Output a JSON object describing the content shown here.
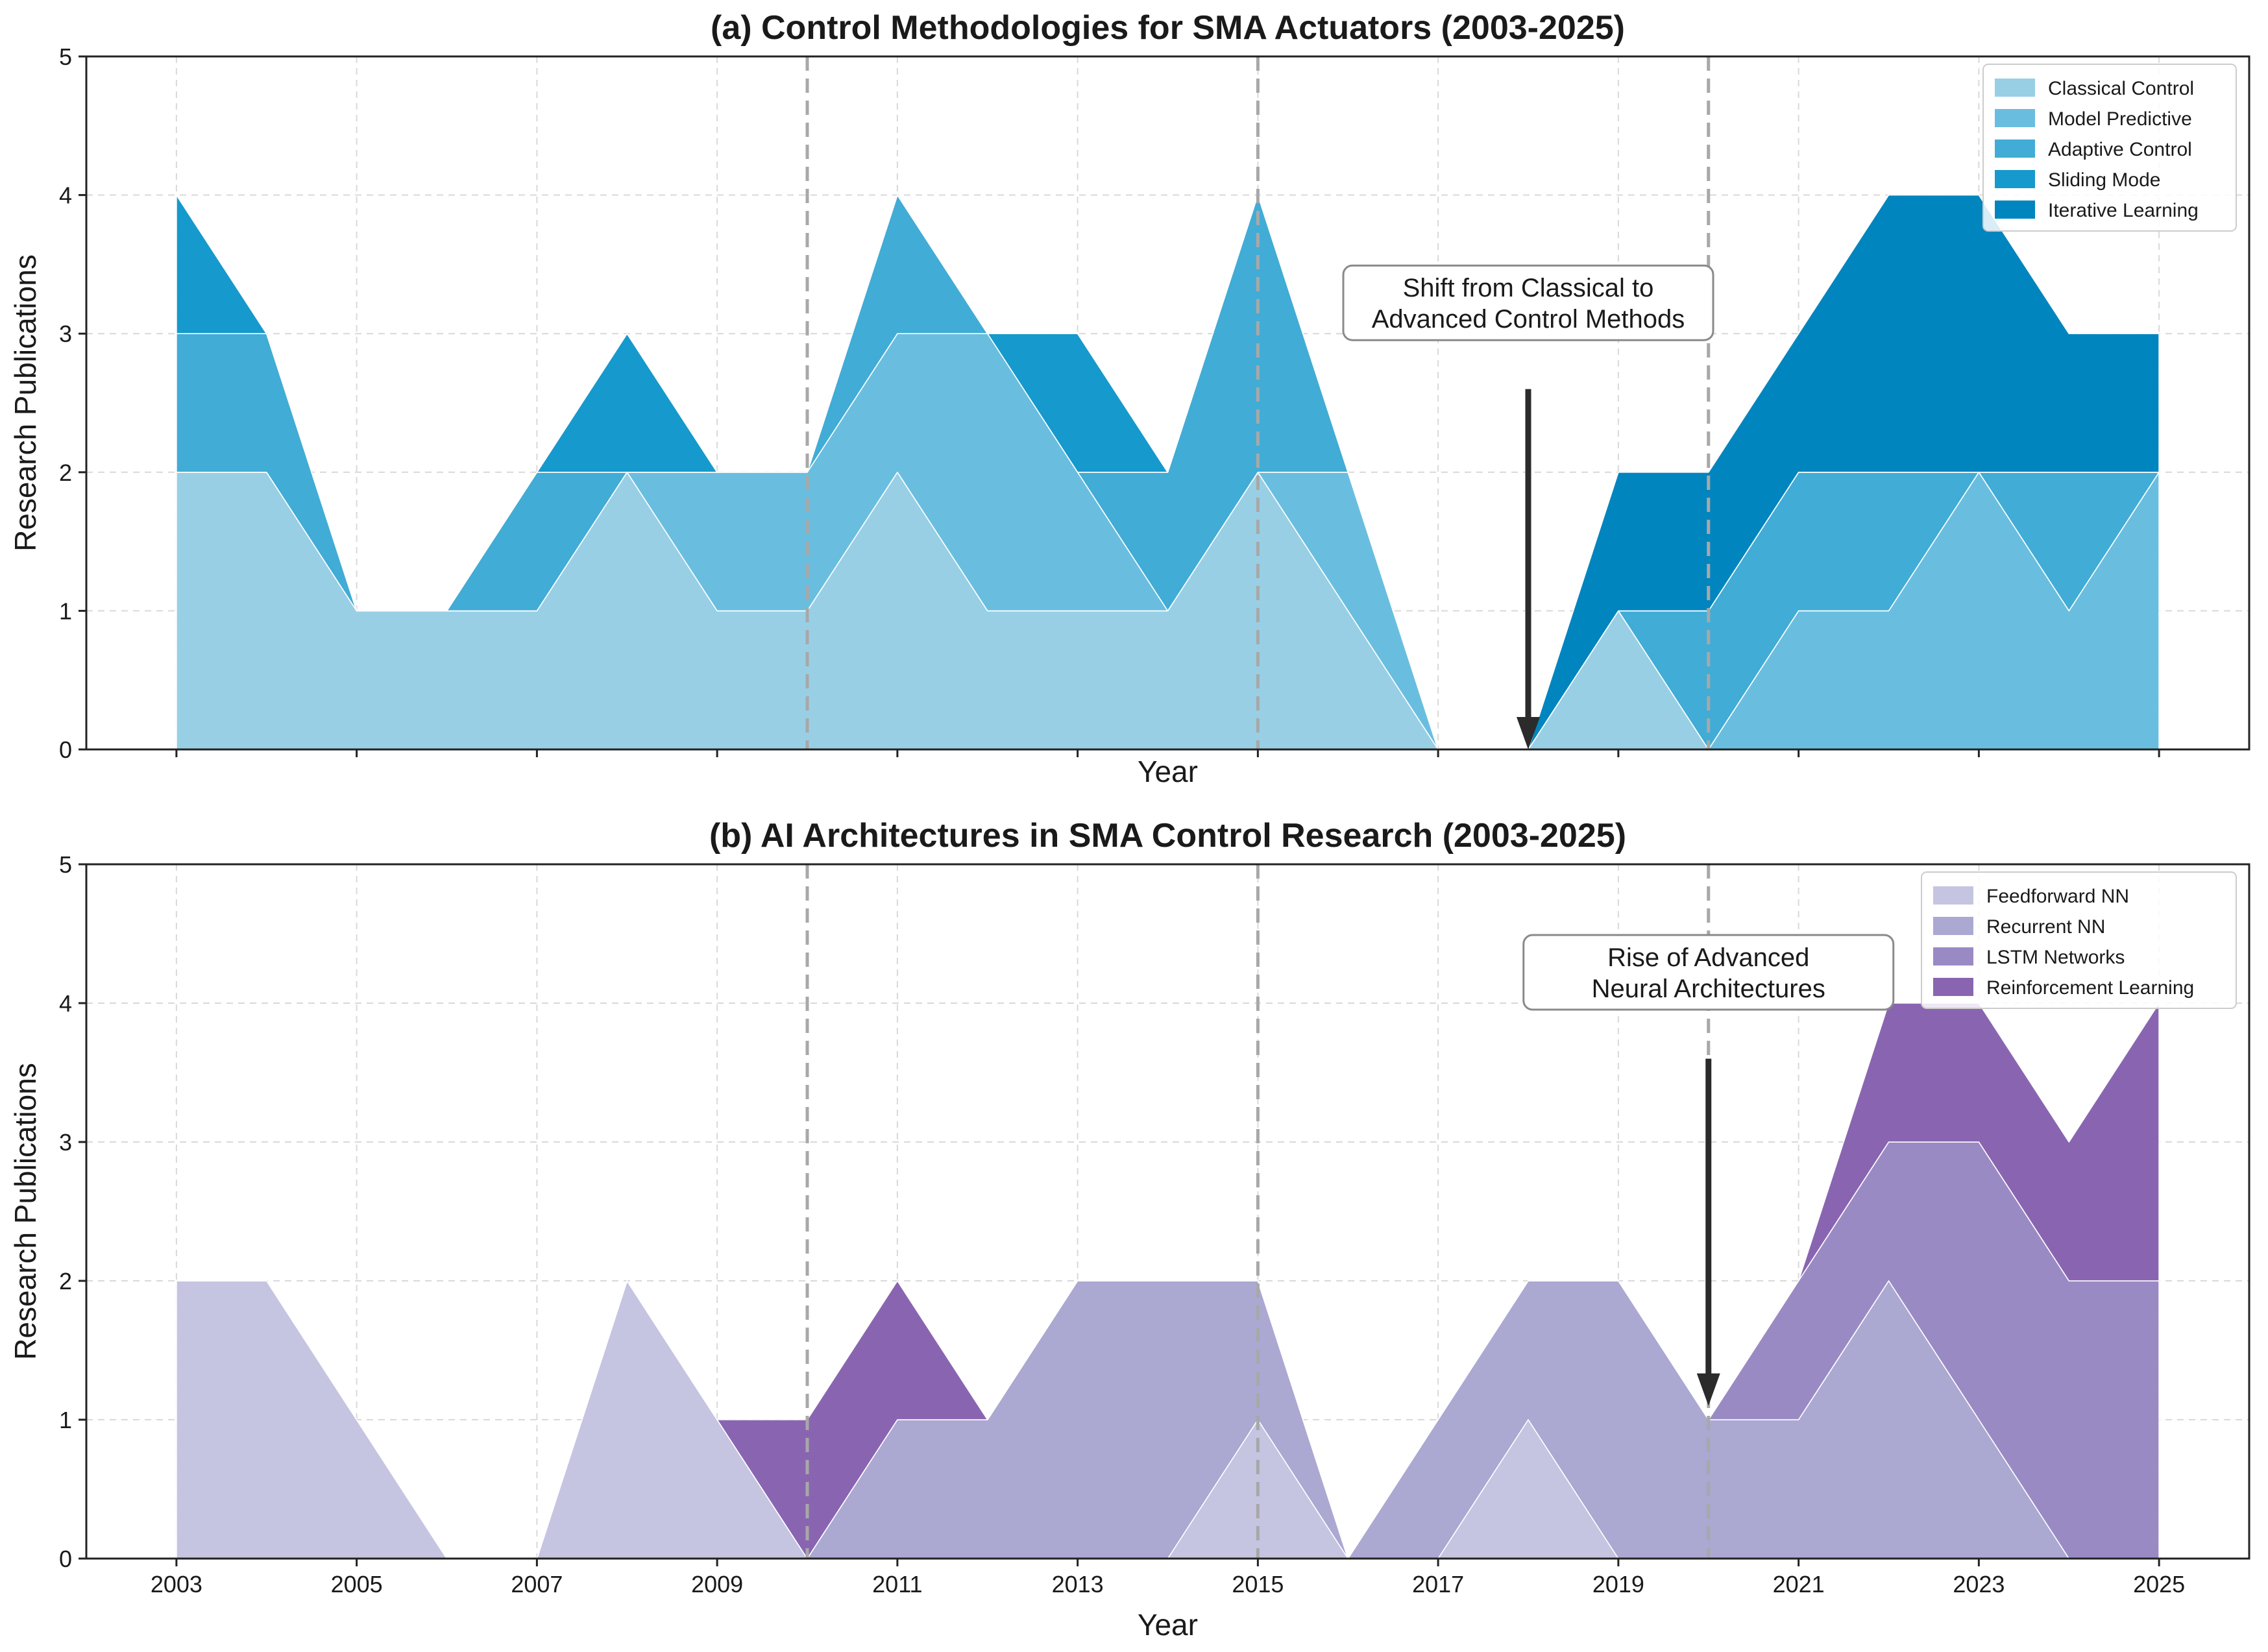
{
  "chart_data": [
    {
      "type": "area",
      "stacked": true,
      "title": "(a) Control Methodologies for SMA Actuators (2003-2025)",
      "xlabel": "Year",
      "ylabel": "Research Publications",
      "x": [
        2003,
        2004,
        2005,
        2006,
        2007,
        2008,
        2009,
        2010,
        2011,
        2012,
        2013,
        2014,
        2015,
        2016,
        2017,
        2018,
        2019,
        2020,
        2021,
        2022,
        2023,
        2024,
        2025
      ],
      "xticks": [
        "2003",
        "2005",
        "2007",
        "2009",
        "2011",
        "2013",
        "2015",
        "2017",
        "2019",
        "2021",
        "2023",
        "2025"
      ],
      "show_xtick_labels": false,
      "ylim": [
        0,
        5
      ],
      "yticks": [
        "0",
        "1",
        "2",
        "3",
        "4",
        "5"
      ],
      "grid": true,
      "legend_position": "top-right",
      "vlines": [
        2010,
        2015,
        2020
      ],
      "series": [
        {
          "name": "Classical Control",
          "color": "#98cfe5",
          "values": [
            2,
            2,
            1,
            1,
            1,
            2,
            1,
            1,
            2,
            1,
            1,
            1,
            2,
            1,
            0,
            0,
            1,
            0,
            0,
            0,
            0,
            0,
            0
          ]
        },
        {
          "name": "Model Predictive",
          "color": "#69bee0",
          "values": [
            0,
            0,
            0,
            0,
            0,
            0,
            1,
            1,
            1,
            2,
            1,
            0,
            0,
            1,
            0,
            0,
            0,
            0,
            1,
            1,
            2,
            1,
            2
          ]
        },
        {
          "name": "Adaptive Control",
          "color": "#41acd6",
          "values": [
            1,
            1,
            0,
            0,
            1,
            0,
            0,
            0,
            1,
            0,
            0,
            1,
            2,
            0,
            0,
            0,
            0,
            1,
            1,
            1,
            0,
            1,
            0
          ]
        },
        {
          "name": "Sliding Mode",
          "color": "#1699cc",
          "values": [
            1,
            0,
            0,
            0,
            0,
            1,
            0,
            0,
            0,
            0,
            1,
            0,
            0,
            0,
            0,
            0,
            0,
            0,
            0,
            0,
            0,
            0,
            0
          ]
        },
        {
          "name": "Iterative Learning",
          "color": "#0085bf",
          "values": [
            0,
            0,
            0,
            0,
            0,
            0,
            0,
            0,
            0,
            0,
            0,
            0,
            0,
            0,
            0,
            0,
            1,
            1,
            1,
            2,
            2,
            1,
            1
          ]
        }
      ],
      "annotation": {
        "text": [
          "Shift from Classical to",
          "Advanced Control Methods"
        ],
        "arrow_to": {
          "x": 2018,
          "y": 0
        },
        "arrow_from": {
          "x": 2018,
          "y": 2.6
        },
        "box_center": {
          "x": 2018,
          "y": 3.0
        }
      }
    },
    {
      "type": "area",
      "stacked": true,
      "title": "(b) AI Architectures in SMA Control Research (2003-2025)",
      "xlabel": "Year",
      "ylabel": "Research Publications",
      "x": [
        2003,
        2004,
        2005,
        2006,
        2007,
        2008,
        2009,
        2010,
        2011,
        2012,
        2013,
        2014,
        2015,
        2016,
        2017,
        2018,
        2019,
        2020,
        2021,
        2022,
        2023,
        2024,
        2025
      ],
      "xticks": [
        "2003",
        "2005",
        "2007",
        "2009",
        "2011",
        "2013",
        "2015",
        "2017",
        "2019",
        "2021",
        "2023",
        "2025"
      ],
      "show_xtick_labels": true,
      "ylim": [
        0,
        5
      ],
      "yticks": [
        "0",
        "1",
        "2",
        "3",
        "4",
        "5"
      ],
      "grid": true,
      "legend_position": "top-right",
      "vlines": [
        2010,
        2015,
        2020
      ],
      "series": [
        {
          "name": "Feedforward NN",
          "color": "#c5c4e1",
          "values": [
            2,
            2,
            1,
            0,
            0,
            2,
            1,
            0,
            0,
            0,
            0,
            0,
            1,
            0,
            0,
            1,
            0,
            0,
            0,
            0,
            0,
            0,
            0
          ]
        },
        {
          "name": "Recurrent NN",
          "color": "#aba8d2",
          "values": [
            0,
            0,
            0,
            0,
            0,
            0,
            0,
            0,
            1,
            1,
            2,
            2,
            1,
            0,
            1,
            1,
            2,
            1,
            1,
            2,
            1,
            0,
            0
          ]
        },
        {
          "name": "LSTM Networks",
          "color": "#9a8ac4",
          "values": [
            0,
            0,
            0,
            0,
            0,
            0,
            0,
            0,
            0,
            0,
            0,
            0,
            0,
            0,
            0,
            0,
            0,
            0,
            1,
            1,
            2,
            2,
            2
          ]
        },
        {
          "name": "Reinforcement Learning",
          "color": "#8965b1",
          "values": [
            0,
            0,
            0,
            0,
            0,
            0,
            0,
            1,
            1,
            0,
            0,
            0,
            0,
            0,
            0,
            0,
            0,
            0,
            0,
            1,
            1,
            1,
            2
          ]
        }
      ],
      "annotation": {
        "text": [
          "Rise of Advanced",
          "Neural Architectures"
        ],
        "arrow_to": {
          "x": 2020,
          "y": 1.1
        },
        "arrow_from": {
          "x": 2020,
          "y": 3.6
        },
        "box_center": {
          "x": 2020,
          "y": 4.0
        }
      }
    }
  ]
}
